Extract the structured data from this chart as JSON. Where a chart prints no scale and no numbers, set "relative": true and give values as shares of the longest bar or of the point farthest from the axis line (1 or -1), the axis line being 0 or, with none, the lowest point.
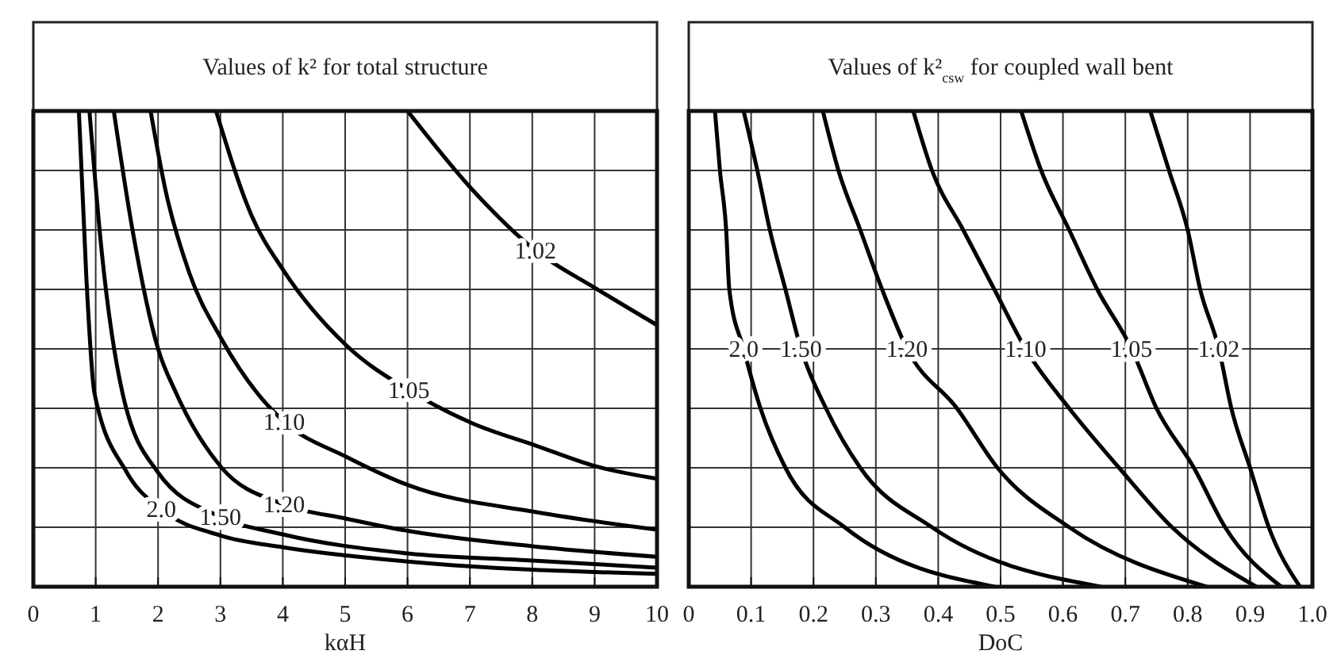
{
  "chart_data": [
    {
      "type": "line",
      "title": "Values of k² for total structure",
      "xlabel": "kαH",
      "relative": true,
      "grid": true,
      "line_style": "solid",
      "marker": "none",
      "xlim": [
        0,
        10
      ],
      "xticks": [
        0,
        1,
        2,
        3,
        4,
        5,
        6,
        7,
        8,
        9,
        10
      ],
      "series": [
        {
          "name": "1.02",
          "color": "#000000",
          "x": [
            6.0,
            7.05,
            8.05,
            9.02,
            10
          ],
          "values": [
            1,
            0.833,
            0.707,
            0.627,
            0.55
          ]
        },
        {
          "name": "1.05",
          "color": "#000000",
          "x": [
            2.93,
            3.5,
            4.02,
            5.02,
            6.02,
            7.05,
            8.05,
            9.02,
            10
          ],
          "values": [
            1,
            0.78,
            0.663,
            0.507,
            0.413,
            0.343,
            0.297,
            0.253,
            0.227
          ]
        },
        {
          "name": "1.10",
          "color": "#000000",
          "x": [
            1.88,
            2.12,
            2.5,
            3.02,
            3.59,
            4.02,
            5.02,
            6.02,
            8.05,
            10
          ],
          "values": [
            1,
            0.833,
            0.66,
            0.52,
            0.407,
            0.347,
            0.273,
            0.213,
            0.157,
            0.12
          ]
        },
        {
          "name": "1.20",
          "color": "#000000",
          "x": [
            1.29,
            1.59,
            2.0,
            2.29,
            3.02,
            4.02,
            5.02,
            6.02,
            8,
            10
          ],
          "values": [
            1,
            0.75,
            0.5,
            0.407,
            0.25,
            0.173,
            0.143,
            0.117,
            0.085,
            0.063
          ]
        },
        {
          "name": "1.50",
          "color": "#000000",
          "x": [
            0.9,
            1.1,
            1.43,
            2.0,
            3.0,
            4,
            6,
            8,
            10
          ],
          "values": [
            1,
            0.7,
            0.407,
            0.24,
            0.147,
            0.11,
            0.07,
            0.055,
            0.04
          ]
        },
        {
          "name": "2.0",
          "color": "#000000",
          "x": [
            0.73,
            0.85,
            0.98,
            1.5,
            2.05,
            3.02,
            4,
            6,
            10
          ],
          "values": [
            1,
            0.65,
            0.407,
            0.24,
            0.163,
            0.107,
            0.083,
            0.053,
            0.027
          ]
        }
      ]
    },
    {
      "type": "line",
      "title": "Values of k²$_{csw}$ for coupled wall bent",
      "xlabel": "DoC",
      "relative": true,
      "grid": true,
      "line_style": "solid",
      "marker": "none",
      "xlim": [
        0,
        1
      ],
      "xticks": [
        0,
        0.1,
        0.2,
        0.3,
        0.4,
        0.5,
        0.6,
        0.7,
        0.8,
        0.9,
        {
          "value": 1,
          "label": "1.0"
        }
      ],
      "series": [
        {
          "name": "2.0",
          "color": "#000000",
          "x": [
            0.042,
            0.05,
            0.06,
            0.065,
            0.088,
            0.115,
            0.155,
            0.25,
            0.49
          ],
          "values": [
            1,
            0.875,
            0.75,
            0.625,
            0.5,
            0.375,
            0.25,
            0.125,
            0
          ]
        },
        {
          "name": "1.50",
          "color": "#000000",
          "x": [
            0.088,
            0.11,
            0.13,
            0.155,
            0.18,
            0.22,
            0.275,
            0.39,
            0.66
          ],
          "values": [
            1,
            0.875,
            0.75,
            0.625,
            0.5,
            0.375,
            0.25,
            0.125,
            0
          ]
        },
        {
          "name": "1.20",
          "color": "#000000",
          "x": [
            0.215,
            0.24,
            0.275,
            0.31,
            0.35,
            0.43,
            0.495,
            0.61,
            0.83
          ],
          "values": [
            1,
            0.875,
            0.75,
            0.625,
            0.5,
            0.375,
            0.25,
            0.125,
            0
          ]
        },
        {
          "name": "1.10",
          "color": "#000000",
          "x": [
            0.36,
            0.39,
            0.44,
            0.49,
            0.54,
            0.61,
            0.69,
            0.775,
            0.91
          ],
          "values": [
            1,
            0.875,
            0.75,
            0.625,
            0.5,
            0.375,
            0.25,
            0.125,
            0
          ]
        },
        {
          "name": "1.05",
          "color": "#000000",
          "x": [
            0.533,
            0.565,
            0.61,
            0.655,
            0.71,
            0.75,
            0.81,
            0.86,
            0.95
          ],
          "values": [
            1,
            0.875,
            0.75,
            0.625,
            0.5,
            0.375,
            0.25,
            0.125,
            0
          ]
        },
        {
          "name": "1.02",
          "color": "#000000",
          "x": [
            0.74,
            0.77,
            0.8,
            0.82,
            0.85,
            0.87,
            0.9,
            0.93,
            0.98
          ],
          "values": [
            1,
            0.875,
            0.75,
            0.625,
            0.5,
            0.375,
            0.25,
            0.125,
            0
          ]
        }
      ]
    }
  ]
}
